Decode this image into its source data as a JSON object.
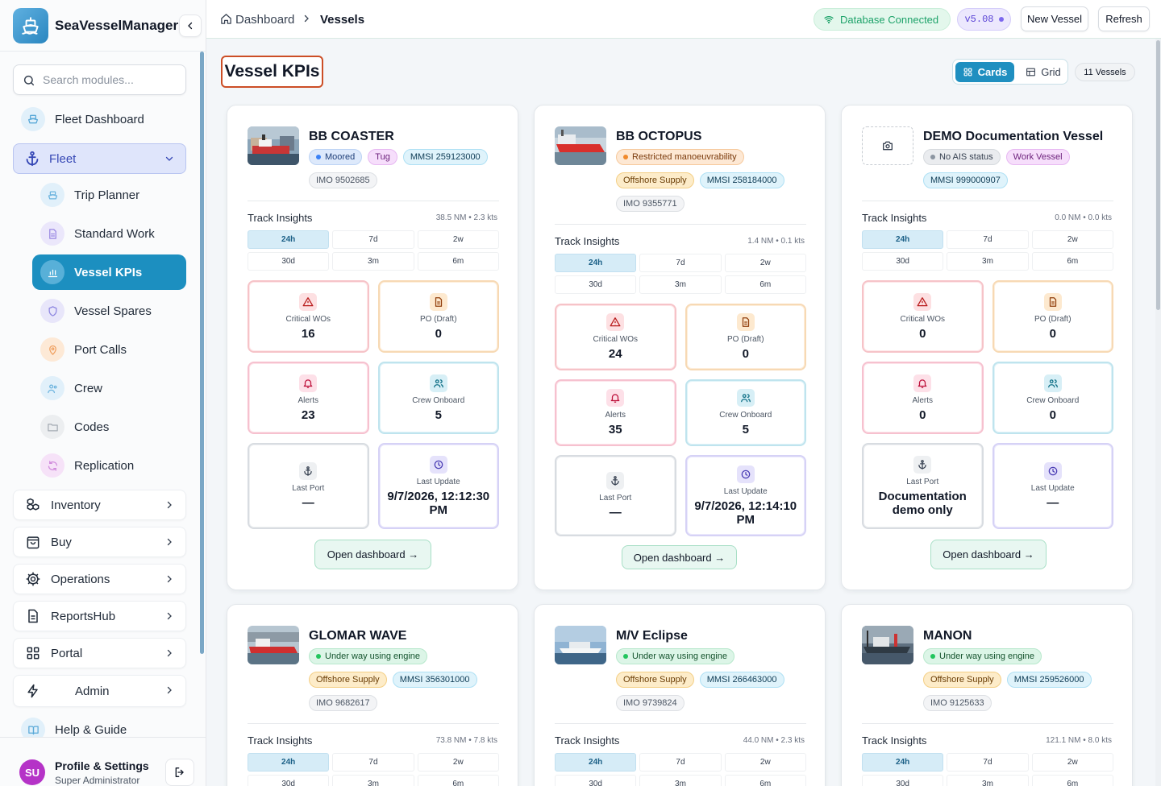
{
  "app": {
    "name": "SeaVesselManager"
  },
  "search": {
    "placeholder": "Search modules..."
  },
  "sidebar": {
    "fleet_dashboard": "Fleet Dashboard",
    "fleet": "Fleet",
    "sub": [
      "Trip Planner",
      "Standard Work",
      "Vessel KPIs",
      "Vessel Spares",
      "Port Calls",
      "Crew",
      "Codes",
      "Replication"
    ],
    "groups": [
      "Inventory",
      "Buy",
      "Operations",
      "ReportsHub",
      "Portal",
      "Admin"
    ],
    "help": "Help & Guide"
  },
  "profile": {
    "initials": "SU",
    "name": "Profile & Settings",
    "role": "Super Administrator"
  },
  "header": {
    "breadcrumb": [
      "Dashboard",
      "Vessels"
    ],
    "db_status": "Database Connected",
    "version": "v5.08",
    "new_vessel": "New Vessel",
    "refresh": "Refresh"
  },
  "page": {
    "title": "Vessel KPIs",
    "view_cards": "Cards",
    "view_grid": "Grid",
    "count": "11 Vessels"
  },
  "labels": {
    "track_insights": "Track Insights",
    "ranges": [
      "24h",
      "7d",
      "2w",
      "30d",
      "3m",
      "6m"
    ],
    "critical_wos": "Critical WOs",
    "po_draft": "PO (Draft)",
    "alerts": "Alerts",
    "crew_onboard": "Crew Onboard",
    "last_port": "Last Port",
    "last_update": "Last Update",
    "open_dashboard": "Open dashboard →"
  },
  "vessels": [
    {
      "name": "BB COASTER",
      "status": "Moored",
      "type": "Tug",
      "mmsi": "MMSI 259123000",
      "imo": "IMO 9502685",
      "stats": "38.5 NM • 2.3 kts",
      "critical_wos": "16",
      "po_draft": "0",
      "alerts": "23",
      "crew_onboard": "5",
      "last_port": "—",
      "last_update": "9/7/2026, 12:12:30 PM"
    },
    {
      "name": "BB OCTOPUS",
      "status": "Restricted manoeuvrability",
      "type": "Offshore Supply",
      "mmsi": "MMSI 258184000",
      "imo": "IMO 9355771",
      "stats": "1.4 NM • 0.1 kts",
      "critical_wos": "24",
      "po_draft": "0",
      "alerts": "35",
      "crew_onboard": "5",
      "last_port": "—",
      "last_update": "9/7/2026, 12:14:10 PM"
    },
    {
      "name": "DEMO Documentation Vessel",
      "status": "No AIS status",
      "type": "Work Vessel",
      "mmsi": "MMSI 999000907",
      "imo": "",
      "stats": "0.0 NM • 0.0 kts",
      "critical_wos": "0",
      "po_draft": "0",
      "alerts": "0",
      "crew_onboard": "0",
      "last_port": "Documentation demo only",
      "last_update": "—"
    },
    {
      "name": "GLOMAR WAVE",
      "status": "Under way using engine",
      "type": "Offshore Supply",
      "mmsi": "MMSI 356301000",
      "imo": "IMO 9682617",
      "stats": "73.8 NM • 7.8 kts"
    },
    {
      "name": "M/V Eclipse",
      "status": "Under way using engine",
      "type": "Offshore Supply",
      "mmsi": "MMSI 266463000",
      "imo": "IMO 9739824",
      "stats": "44.0 NM • 2.3 kts"
    },
    {
      "name": "MANON",
      "status": "Under way using engine",
      "type": "Offshore Supply",
      "mmsi": "MMSI 259526000",
      "imo": "IMO 9125633",
      "stats": "121.1 NM • 8.0 kts"
    }
  ],
  "colors": {
    "accent": "#1f8fc0",
    "fleet_active": "#3547b5",
    "title_outline": "#cc4e26",
    "db_green": "#1ea36a",
    "version_violet": "#5b45d6"
  }
}
